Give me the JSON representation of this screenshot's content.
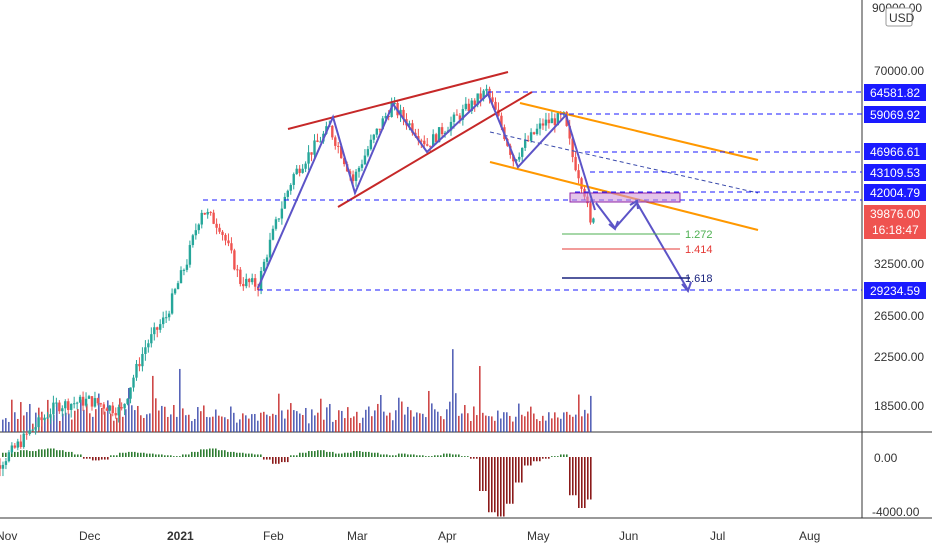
{
  "chart_data": {
    "type": "candlestick",
    "currency": "USD",
    "price_axis_ticks": [
      "90000.00",
      "70000.00",
      "32500.00",
      "26500.00",
      "22500.00",
      "18500.00"
    ],
    "oscillator_axis_ticks": [
      "0.00",
      "-4000.00"
    ],
    "month_labels": [
      "Nov",
      "Dec",
      "2021",
      "Feb",
      "Mar",
      "Apr",
      "May",
      "Jun",
      "Jul",
      "Aug"
    ],
    "price_tags": [
      {
        "label": "64581.82",
        "price": 64581.82,
        "kind": "level"
      },
      {
        "label": "59069.92",
        "price": 59069.92,
        "kind": "level"
      },
      {
        "label": "46966.61",
        "price": 46966.61,
        "kind": "level"
      },
      {
        "label": "43109.53",
        "price": 43109.53,
        "kind": "level"
      },
      {
        "label": "42004.79",
        "price": 42004.79,
        "kind": "level"
      },
      {
        "label": "39876.00",
        "price": 39876.0,
        "kind": "current"
      },
      {
        "label": "16:18:47",
        "kind": "countdown"
      },
      {
        "label": "29234.59",
        "price": 29234.59,
        "kind": "level"
      }
    ],
    "fib_extensions": [
      {
        "label": "1.272",
        "color": "#4caf50"
      },
      {
        "label": "1.414",
        "color": "#e53935"
      },
      {
        "label": "1.618",
        "color": "#1a237e"
      }
    ],
    "price_path": [
      [
        "2020-10-25",
        13600
      ],
      [
        "2020-11-05",
        15500
      ],
      [
        "2020-11-20",
        18600
      ],
      [
        "2020-12-01",
        19000
      ],
      [
        "2020-12-12",
        18200
      ],
      [
        "2020-12-20",
        23500
      ],
      [
        "2020-12-27",
        26500
      ],
      [
        "2021-01-03",
        33000
      ],
      [
        "2021-01-08",
        40500
      ],
      [
        "2021-01-14",
        38000
      ],
      [
        "2021-01-21",
        30500
      ],
      [
        "2021-01-27",
        30000
      ],
      [
        "2021-02-08",
        46500
      ],
      [
        "2021-02-20",
        56000
      ],
      [
        "2021-02-28",
        45500
      ],
      [
        "2021-03-13",
        61200
      ],
      [
        "2021-03-25",
        52500
      ],
      [
        "2021-04-05",
        59000
      ],
      [
        "2021-04-14",
        64800
      ],
      [
        "2021-04-23",
        49500
      ],
      [
        "2021-05-03",
        57000
      ],
      [
        "2021-05-10",
        58500
      ],
      [
        "2021-05-13",
        50000
      ],
      [
        "2021-05-17",
        43500
      ],
      [
        "2021-05-19",
        38000
      ],
      [
        "2021-05-20",
        39876
      ]
    ],
    "volume_relative": [
      0.6,
      0.9,
      0.5,
      1.2,
      0.7,
      0.8,
      1.3,
      0.6,
      0.9,
      1.1,
      0.5,
      0.7,
      1.0,
      0.8,
      0.6,
      1.4,
      0.9,
      0.7,
      1.2,
      0.5,
      0.8,
      1.0,
      1.1,
      0.6,
      0.9,
      1.3,
      1.5,
      0.8,
      1.0,
      1.2,
      0.7,
      0.9,
      2.0,
      1.1,
      0.8,
      1.4,
      1.0,
      0.6,
      0.9,
      1.2,
      0.7,
      0.8,
      1.6,
      1.1,
      0.9,
      1.3,
      1.0,
      0.7,
      0.8,
      1.2,
      3.0,
      1.4,
      0.9,
      1.1,
      1.6,
      0.8,
      0.7,
      1.0,
      0.9,
      2.4,
      1.1,
      0.8,
      1.0,
      0.7,
      0.6,
      0.9,
      0.8,
      1.2,
      0.7,
      0.9,
      0.6,
      0.8,
      1.0,
      0.7,
      0.6,
      0.8,
      0.9,
      0.7,
      0.5,
      0.6,
      0.7,
      0.6,
      0.8,
      0.7,
      0.9,
      0.6,
      0.7,
      0.8,
      1.0,
      0.7,
      0.9,
      1.1,
      1.4,
      1.0,
      0.8,
      1.2,
      1.5,
      0.9,
      0.8,
      1.1
    ],
    "oscillator_relative": [
      0.5,
      0.6,
      0.8,
      0.7,
      0.9,
      1.0,
      0.8,
      0.6,
      0.3,
      -0.2,
      -0.4,
      -0.3,
      0.2,
      0.5,
      0.6,
      0.5,
      0.4,
      0.3,
      0.2,
      0.1,
      0.3,
      0.6,
      0.9,
      1.0,
      0.8,
      0.6,
      0.5,
      0.4,
      0.3,
      -0.3,
      -0.8,
      -0.6,
      0.2,
      0.5,
      0.7,
      0.8,
      0.6,
      0.4,
      0.5,
      0.7,
      0.6,
      0.5,
      0.3,
      0.2,
      0.4,
      0.3,
      0.2,
      0.1,
      0.2,
      0.4,
      0.3,
      0.1,
      -0.2,
      -4.0,
      -6.5,
      -7.0,
      -5.5,
      -3.0,
      -1.0,
      -0.5,
      -0.2,
      0.1,
      0.3,
      -4.5,
      -6.0,
      -5.0
    ]
  }
}
